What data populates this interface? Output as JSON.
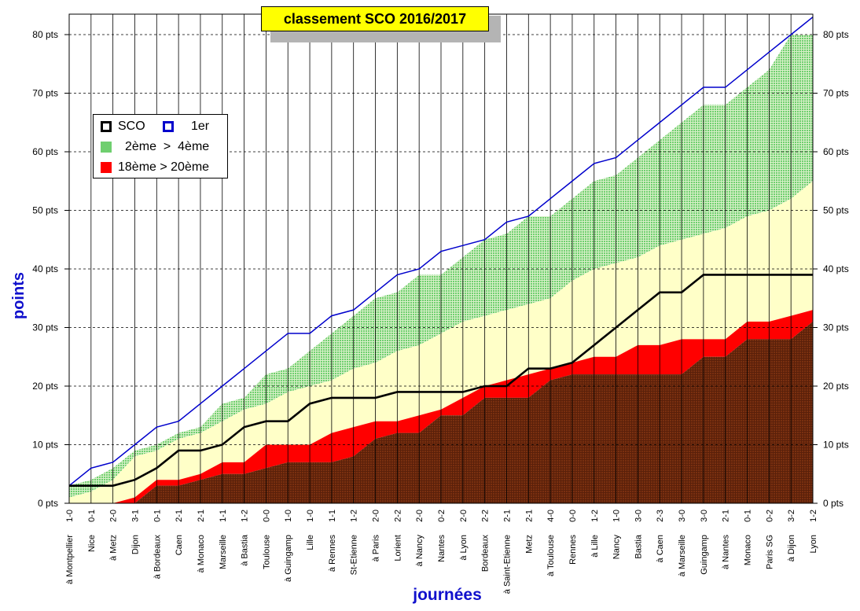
{
  "title": "classement SCO 2016/2017",
  "colors": {
    "sco": "#000000",
    "first": "#0000cc",
    "top_band": "#6fcf6f",
    "middle_band": "#ffffc8",
    "relegation_band": "#ff0000",
    "bottom_fill": "#7a3010",
    "title_bg": "#ffff00",
    "axis_title": "#1010cc"
  },
  "legend": {
    "sco": "SCO",
    "first": "1er",
    "top": "2ème  >  4ème",
    "relegation": "18ème > 20ème"
  },
  "chart_data": {
    "type": "line",
    "title": "classement SCO 2016/2017",
    "xlabel": "journées",
    "ylabel": "points",
    "ylim": [
      0,
      80
    ],
    "y_ticks": [
      "0 pts",
      "10 pts",
      "20 pts",
      "30 pts",
      "40 pts",
      "50 pts",
      "60 pts",
      "70 pts",
      "80 pts"
    ],
    "grid": true,
    "legend_position": "upper-left",
    "matches": [
      {
        "opponent": "à Montpellier",
        "score": "1-0"
      },
      {
        "opponent": "Nice",
        "score": "0-1"
      },
      {
        "opponent": "à Metz",
        "score": "2-0"
      },
      {
        "opponent": "Dijon",
        "score": "3-1"
      },
      {
        "opponent": "à Bordeaux",
        "score": "0-1"
      },
      {
        "opponent": "Caen",
        "score": "2-1"
      },
      {
        "opponent": "à Monaco",
        "score": "2-1"
      },
      {
        "opponent": "Marseille",
        "score": "1-1"
      },
      {
        "opponent": "à Bastia",
        "score": "1-2"
      },
      {
        "opponent": "Toulouse",
        "score": "0-0"
      },
      {
        "opponent": "à Guingamp",
        "score": "1-0"
      },
      {
        "opponent": "Lille",
        "score": "1-0"
      },
      {
        "opponent": "à Rennes",
        "score": "1-1"
      },
      {
        "opponent": "St-Etienne",
        "score": "1-2"
      },
      {
        "opponent": "à Paris",
        "score": "2-0"
      },
      {
        "opponent": "Lorient",
        "score": "2-2"
      },
      {
        "opponent": "à Nancy",
        "score": "2-0"
      },
      {
        "opponent": "Nantes",
        "score": "0-2"
      },
      {
        "opponent": "à Lyon",
        "score": "2-0"
      },
      {
        "opponent": "Bordeaux",
        "score": "2-2"
      },
      {
        "opponent": "à Saint-Etienne",
        "score": "2-1"
      },
      {
        "opponent": "Metz",
        "score": "2-1"
      },
      {
        "opponent": "à Toulouse",
        "score": "4-0"
      },
      {
        "opponent": "Rennes",
        "score": "0-0"
      },
      {
        "opponent": "à Lille",
        "score": "1-2"
      },
      {
        "opponent": "Nancy",
        "score": "1-0"
      },
      {
        "opponent": "Bastia",
        "score": "3-0"
      },
      {
        "opponent": "à Caen",
        "score": "2-3"
      },
      {
        "opponent": "à Marseille",
        "score": "3-0"
      },
      {
        "opponent": "Guingamp",
        "score": "3-0"
      },
      {
        "opponent": "à Nantes",
        "score": "2-1"
      },
      {
        "opponent": "Monaco",
        "score": "0-1"
      },
      {
        "opponent": "Paris SG",
        "score": "0-2"
      },
      {
        "opponent": "à Dijon",
        "score": "3-2"
      },
      {
        "opponent": "Lyon",
        "score": "1-2"
      }
    ],
    "series": [
      {
        "name": "1er",
        "values": [
          3,
          6,
          7,
          10,
          13,
          14,
          17,
          20,
          23,
          26,
          29,
          29,
          32,
          33,
          36,
          39,
          40,
          43,
          44,
          45,
          48,
          49,
          52,
          55,
          58,
          59,
          62,
          65,
          68,
          71,
          71,
          74,
          77,
          80,
          83
        ]
      },
      {
        "name": "2ème > 4ème (max)",
        "values": [
          3,
          4,
          6,
          9,
          10,
          12,
          13,
          17,
          18,
          22,
          23,
          26,
          29,
          32,
          35,
          36,
          39,
          39,
          42,
          45,
          46,
          49,
          49,
          52,
          55,
          56,
          59,
          62,
          65,
          68,
          68,
          71,
          74,
          80,
          80
        ]
      },
      {
        "name": "2ème > 4ème (min)",
        "values": [
          1,
          2,
          4,
          8,
          9,
          11,
          12,
          14,
          16,
          17,
          19,
          20,
          21,
          23,
          24,
          26,
          27,
          29,
          31,
          32,
          33,
          34,
          35,
          38,
          40,
          41,
          42,
          44,
          45,
          46,
          47,
          49,
          50,
          52,
          55
        ]
      },
      {
        "name": "18ème > 20ème (max)",
        "values": [
          0,
          0,
          0,
          1,
          4,
          4,
          5,
          7,
          7,
          10,
          10,
          10,
          12,
          13,
          14,
          14,
          15,
          16,
          18,
          20,
          21,
          22,
          23,
          24,
          25,
          25,
          27,
          27,
          28,
          28,
          28,
          31,
          31,
          32,
          33
        ]
      },
      {
        "name": "18ème > 20ème (min)",
        "values": [
          0,
          0,
          0,
          0,
          3,
          3,
          4,
          5,
          5,
          6,
          7,
          7,
          7,
          8,
          11,
          12,
          12,
          15,
          15,
          18,
          18,
          18,
          21,
          22,
          22,
          22,
          22,
          22,
          22,
          25,
          25,
          28,
          28,
          28,
          31
        ]
      },
      {
        "name": "SCO",
        "values": [
          3,
          3,
          3,
          4,
          6,
          9,
          9,
          10,
          13,
          14,
          14,
          17,
          18,
          18,
          18,
          19,
          19,
          19,
          19,
          20,
          20,
          23,
          23,
          24,
          27,
          30,
          33,
          36,
          36,
          39,
          39,
          39,
          39,
          39,
          39
        ]
      }
    ]
  }
}
